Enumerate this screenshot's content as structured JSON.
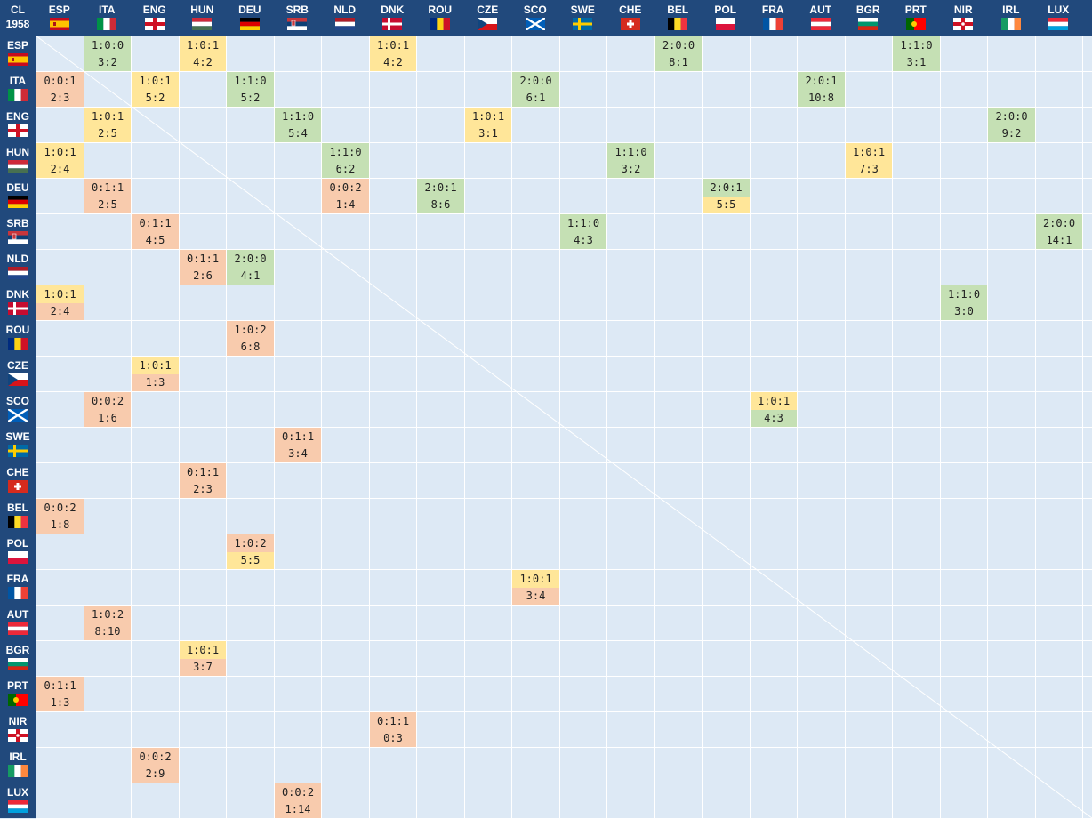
{
  "corner": {
    "label": "CL",
    "year": "1958"
  },
  "teams": [
    {
      "code": "ESP",
      "flag": "spain-flag-icon"
    },
    {
      "code": "ITA",
      "flag": "italy-flag-icon"
    },
    {
      "code": "ENG",
      "flag": "england-flag-icon"
    },
    {
      "code": "HUN",
      "flag": "hungary-flag-icon"
    },
    {
      "code": "DEU",
      "flag": "germany-flag-icon"
    },
    {
      "code": "SRB",
      "flag": "serbia-flag-icon"
    },
    {
      "code": "NLD",
      "flag": "netherlands-flag-icon"
    },
    {
      "code": "DNK",
      "flag": "denmark-flag-icon"
    },
    {
      "code": "ROU",
      "flag": "romania-flag-icon"
    },
    {
      "code": "CZE",
      "flag": "czech-flag-icon"
    },
    {
      "code": "SCO",
      "flag": "scotland-flag-icon"
    },
    {
      "code": "SWE",
      "flag": "sweden-flag-icon"
    },
    {
      "code": "CHE",
      "flag": "switzerland-flag-icon"
    },
    {
      "code": "BEL",
      "flag": "belgium-flag-icon"
    },
    {
      "code": "POL",
      "flag": "poland-flag-icon"
    },
    {
      "code": "FRA",
      "flag": "france-flag-icon"
    },
    {
      "code": "AUT",
      "flag": "austria-flag-icon"
    },
    {
      "code": "BGR",
      "flag": "bulgaria-flag-icon"
    },
    {
      "code": "PRT",
      "flag": "portugal-flag-icon"
    },
    {
      "code": "NIR",
      "flag": "northern-ireland-flag-icon"
    },
    {
      "code": "IRL",
      "flag": "ireland-flag-icon"
    },
    {
      "code": "LUX",
      "flag": "luxembourg-flag-icon"
    }
  ],
  "colors": {
    "header": "#21497c",
    "background": "#dde9f5",
    "win": "#c5e0b4",
    "draw": "#ffe699",
    "loss": "#f8cbad",
    "gridline": "#ffffff"
  },
  "results": [
    {
      "row": 0,
      "col": 1,
      "record": "1:0:0",
      "goals": "3:2",
      "outcome": "win"
    },
    {
      "row": 0,
      "col": 3,
      "record": "1:0:1",
      "goals": "4:2",
      "outcome": "draw"
    },
    {
      "row": 0,
      "col": 7,
      "record": "1:0:1",
      "goals": "4:2",
      "outcome": "draw"
    },
    {
      "row": 0,
      "col": 13,
      "record": "2:0:0",
      "goals": "8:1",
      "outcome": "win"
    },
    {
      "row": 0,
      "col": 18,
      "record": "1:1:0",
      "goals": "3:1",
      "outcome": "win"
    },
    {
      "row": 1,
      "col": 0,
      "record": "0:0:1",
      "goals": "2:3",
      "outcome": "loss"
    },
    {
      "row": 1,
      "col": 2,
      "record": "1:0:1",
      "goals": "5:2",
      "outcome": "draw"
    },
    {
      "row": 1,
      "col": 4,
      "record": "1:1:0",
      "goals": "5:2",
      "outcome": "win"
    },
    {
      "row": 1,
      "col": 10,
      "record": "2:0:0",
      "goals": "6:1",
      "outcome": "win"
    },
    {
      "row": 1,
      "col": 16,
      "record": "2:0:1",
      "goals": "10:8",
      "outcome": "win"
    },
    {
      "row": 2,
      "col": 1,
      "record": "1:0:1",
      "goals": "2:5",
      "outcome": "draw"
    },
    {
      "row": 2,
      "col": 5,
      "record": "1:1:0",
      "goals": "5:4",
      "outcome": "win"
    },
    {
      "row": 2,
      "col": 9,
      "record": "1:0:1",
      "goals": "3:1",
      "outcome": "draw"
    },
    {
      "row": 2,
      "col": 20,
      "record": "2:0:0",
      "goals": "9:2",
      "outcome": "win"
    },
    {
      "row": 3,
      "col": 0,
      "record": "1:0:1",
      "goals": "2:4",
      "outcome": "draw"
    },
    {
      "row": 3,
      "col": 6,
      "record": "1:1:0",
      "goals": "6:2",
      "outcome": "win"
    },
    {
      "row": 3,
      "col": 12,
      "record": "1:1:0",
      "goals": "3:2",
      "outcome": "win"
    },
    {
      "row": 3,
      "col": 17,
      "record": "1:0:1",
      "goals": "7:3",
      "outcome": "draw"
    },
    {
      "row": 4,
      "col": 1,
      "record": "0:1:1",
      "goals": "2:5",
      "outcome": "loss"
    },
    {
      "row": 4,
      "col": 6,
      "record": "0:0:2",
      "goals": "1:4",
      "outcome": "loss"
    },
    {
      "row": 4,
      "col": 8,
      "record": "2:0:1",
      "goals": "8:6",
      "outcome": "win"
    },
    {
      "row": 4,
      "col": 14,
      "record": "2:0:1",
      "goals": "5:5",
      "outcome": "win-draw"
    },
    {
      "row": 5,
      "col": 2,
      "record": "0:1:1",
      "goals": "4:5",
      "outcome": "loss"
    },
    {
      "row": 5,
      "col": 11,
      "record": "1:1:0",
      "goals": "4:3",
      "outcome": "win"
    },
    {
      "row": 5,
      "col": 21,
      "record": "2:0:0",
      "goals": "14:1",
      "outcome": "win"
    },
    {
      "row": 6,
      "col": 3,
      "record": "0:1:1",
      "goals": "2:6",
      "outcome": "loss"
    },
    {
      "row": 6,
      "col": 4,
      "record": "2:0:0",
      "goals": "4:1",
      "outcome": "win"
    },
    {
      "row": 7,
      "col": 0,
      "record": "1:0:1",
      "goals": "2:4",
      "outcome": "draw-loss"
    },
    {
      "row": 7,
      "col": 19,
      "record": "1:1:0",
      "goals": "3:0",
      "outcome": "win"
    },
    {
      "row": 8,
      "col": 4,
      "record": "1:0:2",
      "goals": "6:8",
      "outcome": "loss"
    },
    {
      "row": 9,
      "col": 2,
      "record": "1:0:1",
      "goals": "1:3",
      "outcome": "draw-loss"
    },
    {
      "row": 10,
      "col": 1,
      "record": "0:0:2",
      "goals": "1:6",
      "outcome": "loss"
    },
    {
      "row": 10,
      "col": 15,
      "record": "1:0:1",
      "goals": "4:3",
      "outcome": "draw-win"
    },
    {
      "row": 11,
      "col": 5,
      "record": "0:1:1",
      "goals": "3:4",
      "outcome": "loss"
    },
    {
      "row": 12,
      "col": 3,
      "record": "0:1:1",
      "goals": "2:3",
      "outcome": "loss"
    },
    {
      "row": 13,
      "col": 0,
      "record": "0:0:2",
      "goals": "1:8",
      "outcome": "loss"
    },
    {
      "row": 14,
      "col": 4,
      "record": "1:0:2",
      "goals": "5:5",
      "outcome": "loss-draw"
    },
    {
      "row": 15,
      "col": 10,
      "record": "1:0:1",
      "goals": "3:4",
      "outcome": "draw-loss"
    },
    {
      "row": 16,
      "col": 1,
      "record": "1:0:2",
      "goals": "8:10",
      "outcome": "loss"
    },
    {
      "row": 17,
      "col": 3,
      "record": "1:0:1",
      "goals": "3:7",
      "outcome": "draw-loss"
    },
    {
      "row": 18,
      "col": 0,
      "record": "0:1:1",
      "goals": "1:3",
      "outcome": "loss"
    },
    {
      "row": 19,
      "col": 7,
      "record": "0:1:1",
      "goals": "0:3",
      "outcome": "loss"
    },
    {
      "row": 20,
      "col": 2,
      "record": "0:0:2",
      "goals": "2:9",
      "outcome": "loss"
    },
    {
      "row": 21,
      "col": 5,
      "record": "0:0:2",
      "goals": "1:14",
      "outcome": "loss"
    }
  ]
}
